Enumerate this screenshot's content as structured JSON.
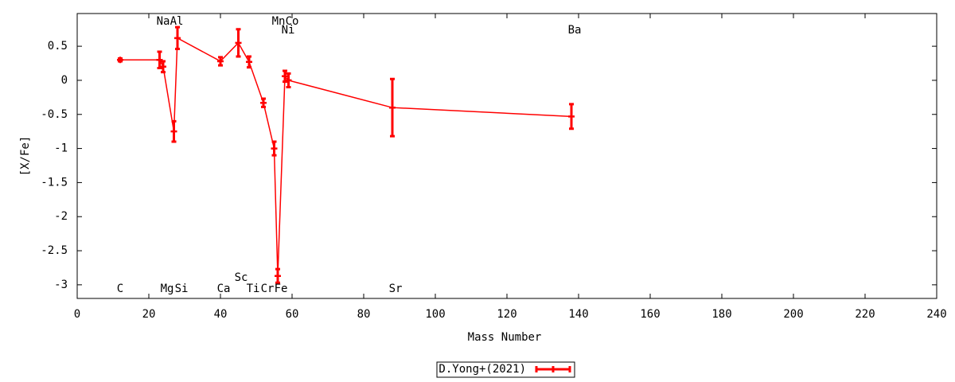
{
  "chart_data": {
    "type": "errorline",
    "xlabel": "Mass Number",
    "ylabel": "[X/Fe]",
    "xlim": [
      0,
      240
    ],
    "ylim": [
      -3.2,
      0.98
    ],
    "xticks": [
      0,
      20,
      40,
      60,
      80,
      100,
      120,
      140,
      160,
      180,
      200,
      220,
      240
    ],
    "yticks": [
      0.5,
      0,
      -0.5,
      -1,
      -1.5,
      -2,
      -2.5,
      -3
    ],
    "series": [
      {
        "name": "D.Yong+(2021)",
        "color": "#ff0000",
        "x": [
          12,
          23,
          24,
          27,
          28,
          40,
          45,
          48,
          52,
          55,
          56,
          58,
          59,
          88,
          138
        ],
        "values": [
          0.3,
          0.3,
          0.2,
          -0.75,
          0.62,
          0.28,
          0.55,
          0.27,
          -0.33,
          -1.0,
          -2.87,
          0.06,
          0.0,
          -0.4,
          -0.53
        ],
        "errors": [
          0.02,
          0.12,
          0.08,
          0.15,
          0.16,
          0.06,
          0.2,
          0.08,
          0.06,
          0.1,
          0.1,
          0.08,
          0.1,
          0.42,
          0.18
        ]
      }
    ],
    "annotations": [
      "C",
      "Na",
      "Mg",
      "Al",
      "Si",
      "Ca",
      "Sc",
      "Ti",
      "Cr",
      "Mn",
      "Fe",
      "Co",
      "Ni",
      "Sr",
      "Ba"
    ]
  }
}
